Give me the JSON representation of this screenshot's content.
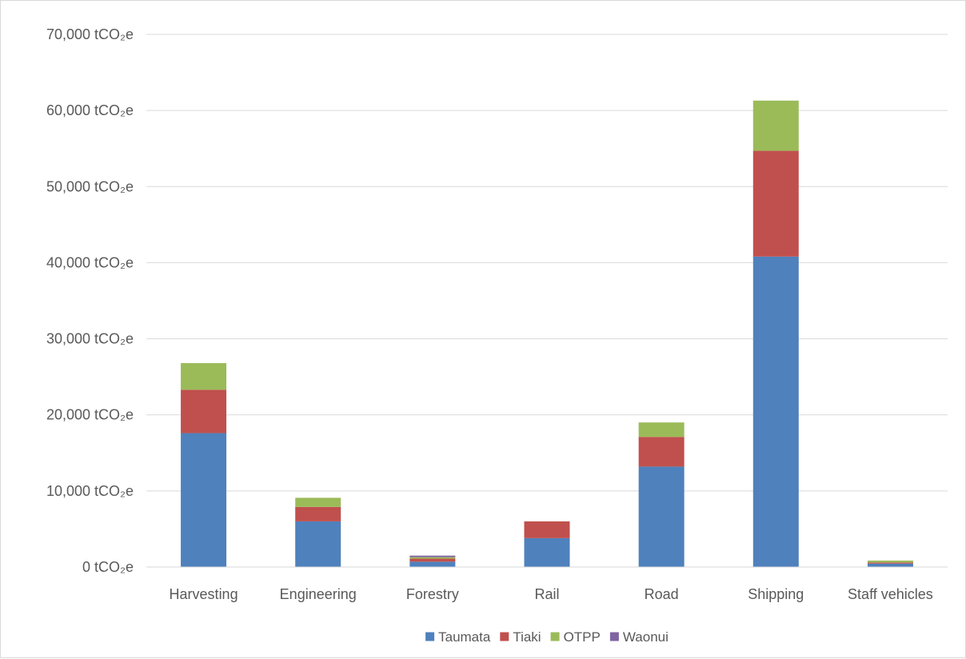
{
  "chart_data": {
    "type": "bar",
    "stacked": true,
    "categories": [
      "Harvesting",
      "Engineering",
      "Forestry",
      "Rail",
      "Road",
      "Shipping",
      "Staff vehicles"
    ],
    "series": [
      {
        "name": "Taumata",
        "color": "#4f81bd",
        "values": [
          17600,
          6000,
          700,
          3800,
          13200,
          40800,
          450
        ]
      },
      {
        "name": "Tiaki",
        "color": "#c0504d",
        "values": [
          5700,
          1900,
          400,
          2200,
          3900,
          13900,
          150
        ]
      },
      {
        "name": "OTPP",
        "color": "#9bbb59",
        "values": [
          3500,
          1200,
          200,
          0,
          1900,
          6600,
          250
        ]
      },
      {
        "name": "Waonui",
        "color": "#8064a2",
        "values": [
          0,
          0,
          200,
          0,
          0,
          0,
          0
        ]
      }
    ],
    "y_ticks": [
      0,
      10000,
      20000,
      30000,
      40000,
      50000,
      60000,
      70000
    ],
    "y_tick_labels": [
      "0 tCO₂e",
      "10,000 tCO₂e",
      "20,000 tCO₂e",
      "30,000 tCO₂e",
      "40,000 tCO₂e",
      "50,000 tCO₂e",
      "60,000 tCO₂e",
      "70,000 tCO₂e"
    ],
    "ylim": [
      0,
      70000
    ],
    "grid": true,
    "legend_position": "bottom"
  }
}
